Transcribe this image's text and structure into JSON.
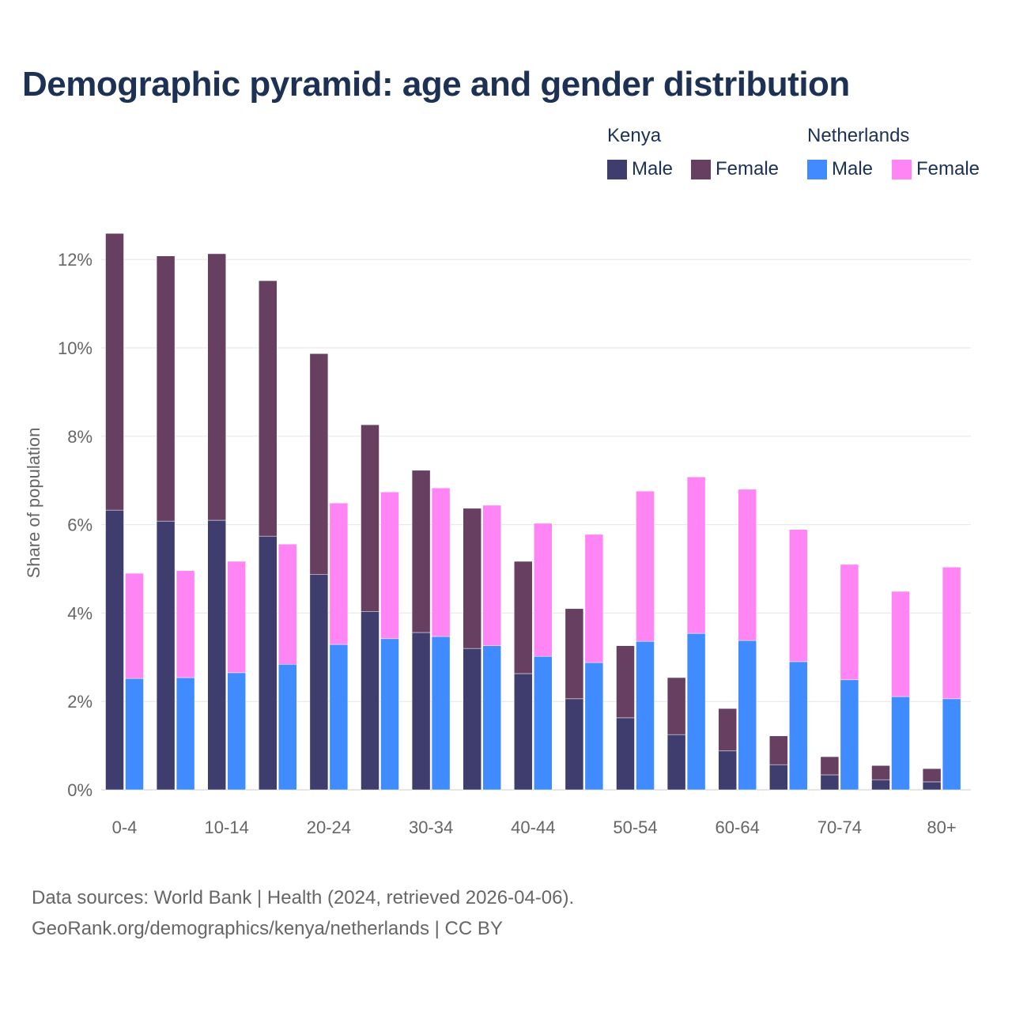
{
  "title": "Demographic pyramid: age and gender distribution",
  "legend": {
    "groups": [
      {
        "name": "Kenya",
        "items": [
          {
            "label": "Male",
            "color": "#3f3d6e"
          },
          {
            "label": "Female",
            "color": "#673f60"
          }
        ]
      },
      {
        "name": "Netherlands",
        "items": [
          {
            "label": "Male",
            "color": "#3f8bff"
          },
          {
            "label": "Female",
            "color": "#ff85f5"
          }
        ]
      }
    ]
  },
  "source": {
    "line1": "Data sources: World Bank | Health (2024, retrieved 2026-04-06).",
    "line2": "GeoRank.org/demographics/kenya/netherlands | CC BY"
  },
  "chart_data": {
    "type": "bar",
    "stacked": true,
    "title": "Demographic pyramid: age and gender distribution",
    "xlabel": "",
    "ylabel": "Share of population",
    "ylim": [
      0,
      12.6
    ],
    "yticks": [
      0,
      2,
      4,
      6,
      8,
      10,
      12
    ],
    "ytick_labels": [
      "0%",
      "2%",
      "4%",
      "6%",
      "8%",
      "10%",
      "12%"
    ],
    "categories": [
      "0-4",
      "5-9",
      "10-14",
      "15-19",
      "20-24",
      "25-29",
      "30-34",
      "35-39",
      "40-44",
      "45-49",
      "50-54",
      "55-59",
      "60-64",
      "65-69",
      "70-74",
      "75-79",
      "80+"
    ],
    "xtick_labels": [
      "0-4",
      "10-14",
      "20-24",
      "30-34",
      "40-44",
      "50-54",
      "60-64",
      "70-74",
      "80+"
    ],
    "grid": true,
    "legend_position": "top-right",
    "series": [
      {
        "name": "Kenya Male",
        "stack": "Kenya",
        "color": "#3f3d6e",
        "values": [
          6.33,
          6.08,
          6.1,
          5.74,
          4.87,
          4.03,
          3.56,
          3.2,
          2.63,
          2.06,
          1.63,
          1.25,
          0.88,
          0.57,
          0.34,
          0.23,
          0.18
        ]
      },
      {
        "name": "Kenya Female",
        "stack": "Kenya",
        "color": "#673f60",
        "values": [
          6.26,
          6.0,
          6.03,
          5.78,
          5.0,
          4.23,
          3.67,
          3.17,
          2.54,
          2.04,
          1.63,
          1.29,
          0.96,
          0.65,
          0.41,
          0.32,
          0.3
        ]
      },
      {
        "name": "Netherlands Male",
        "stack": "Netherlands",
        "color": "#3f8bff",
        "values": [
          2.52,
          2.54,
          2.65,
          2.84,
          3.29,
          3.42,
          3.47,
          3.26,
          3.02,
          2.88,
          3.36,
          3.54,
          3.38,
          2.9,
          2.49,
          2.11,
          2.06
        ]
      },
      {
        "name": "Netherlands Female",
        "stack": "Netherlands",
        "color": "#ff85f5",
        "values": [
          2.38,
          2.42,
          2.52,
          2.72,
          3.2,
          3.32,
          3.36,
          3.18,
          3.01,
          2.9,
          3.4,
          3.54,
          3.42,
          2.99,
          2.61,
          2.38,
          2.98
        ]
      }
    ]
  }
}
